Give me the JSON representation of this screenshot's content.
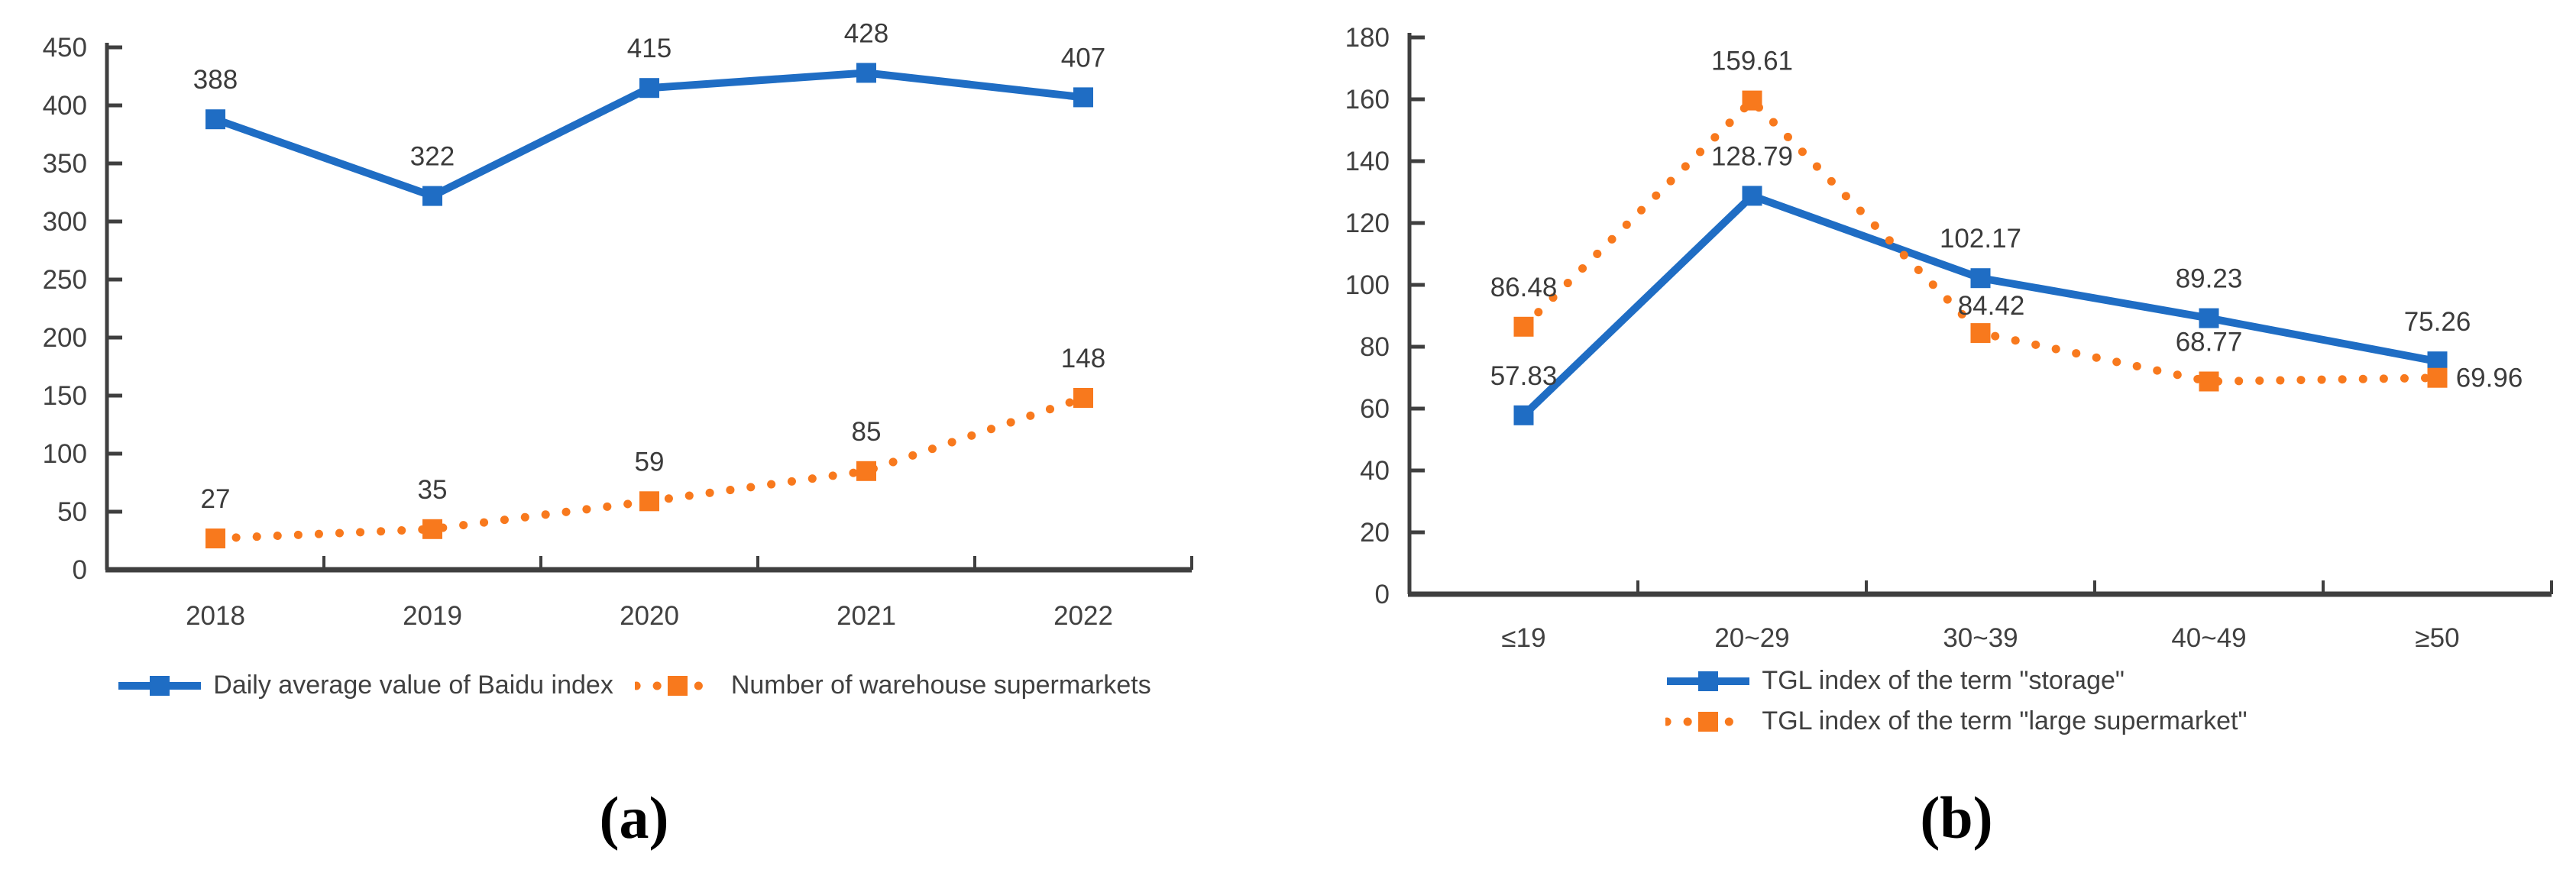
{
  "style": {
    "axis_color": "#3f3f3f",
    "tick_label_color": "#404040",
    "data_label_color": "#3b3b3b",
    "caption_color": "#000000",
    "line_width": 10,
    "dot_width": 11,
    "dot_gap": 27,
    "marker_size": 26,
    "label_gap": 40
  },
  "chart_data": [
    {
      "id": "a",
      "type": "line",
      "caption": "(a)",
      "title": "",
      "xlabel": "",
      "ylabel": "",
      "grid": false,
      "legend_position": "bottom-row",
      "categories": [
        "2018",
        "2019",
        "2020",
        "2021",
        "2022"
      ],
      "ylim": [
        0,
        450
      ],
      "ytick_step": 50,
      "series": [
        {
          "name": "Daily average value of Baidu index",
          "color": "#1f6dc4",
          "style": "solid",
          "values": [
            388,
            322,
            415,
            428,
            407
          ],
          "labels": [
            "388",
            "322",
            "415",
            "428",
            "407"
          ],
          "label_offsets": [
            [
              0,
              0
            ],
            [
              0,
              0
            ],
            [
              0,
              0
            ],
            [
              0,
              0
            ],
            [
              0,
              0
            ]
          ]
        },
        {
          "name": "Number of warehouse supermarkets",
          "color": "#f8791d",
          "style": "dotted",
          "values": [
            27,
            35,
            59,
            85,
            148
          ],
          "labels": [
            "27",
            "35",
            "59",
            "85",
            "148"
          ],
          "label_offsets": [
            [
              0,
              0
            ],
            [
              0,
              0
            ],
            [
              0,
              0
            ],
            [
              0,
              0
            ],
            [
              0,
              0
            ]
          ]
        }
      ]
    },
    {
      "id": "b",
      "type": "line",
      "caption": "(b)",
      "title": "",
      "xlabel": "",
      "ylabel": "",
      "grid": false,
      "legend_position": "bottom-column",
      "categories": [
        "≤19",
        "20~29",
        "30~39",
        "40~49",
        "≥50"
      ],
      "ylim": [
        0,
        180
      ],
      "ytick_step": 20,
      "series": [
        {
          "name": "TGL index of the term \"storage\"",
          "color": "#1f6dc4",
          "style": "solid",
          "values": [
            57.83,
            128.79,
            102.17,
            89.23,
            75.26
          ],
          "labels": [
            "57.83",
            "128.79",
            "102.17",
            "89.23",
            "75.26"
          ],
          "label_offsets": [
            [
              0,
              0
            ],
            [
              0,
              0
            ],
            [
              0,
              0
            ],
            [
              0,
              0
            ],
            [
              0,
              0
            ]
          ]
        },
        {
          "name": "TGL index of the term \"large supermarket\"",
          "color": "#f8791d",
          "style": "dotted",
          "values": [
            86.48,
            159.61,
            84.42,
            68.77,
            69.96
          ],
          "labels": [
            "86.48",
            "159.61",
            "84.42",
            "68.77",
            "69.96"
          ],
          "label_offsets": [
            [
              0,
              0
            ],
            [
              0,
              0
            ],
            [
              14,
              16
            ],
            [
              0,
              0
            ],
            [
              68,
              52
            ]
          ]
        }
      ]
    }
  ]
}
